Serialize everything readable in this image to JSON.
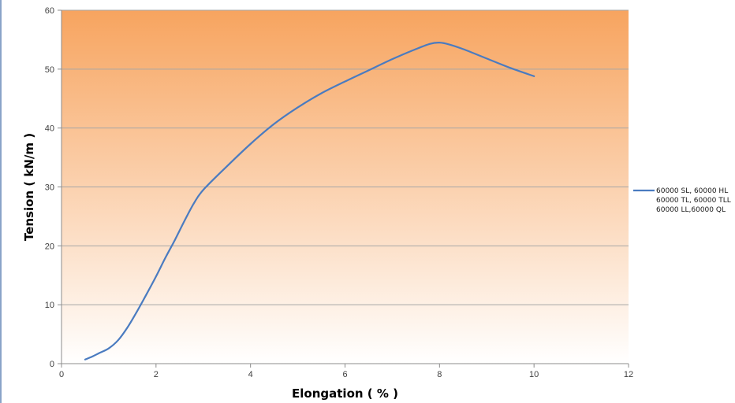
{
  "chart_data": {
    "type": "line",
    "title": "",
    "xlabel": "Elongation ( % )",
    "ylabel": "Tension ( kN/m )",
    "xlim": [
      0,
      12
    ],
    "ylim": [
      0,
      60
    ],
    "xticks": [
      0,
      2,
      4,
      6,
      8,
      10,
      12
    ],
    "yticks": [
      0,
      10,
      20,
      30,
      40,
      50,
      60
    ],
    "grid": "horizontal",
    "legend_position": "right",
    "background": "orange-to-white vertical gradient",
    "colors": {
      "line": "#4a7bc0",
      "gradient_top": "#f7a45f",
      "gradient_bottom": "#ffffff",
      "grid": "#a6a6a6"
    },
    "series": [
      {
        "name": "60000 SL, 60000 HL, 60000 TL, 60000 TLL, 60000 LL,60000 QL",
        "legend_lines": [
          "60000 SL, 60000 HL",
          "60000 TL, 60000 TLL",
          "60000 LL,60000 QL"
        ],
        "x": [
          0.5,
          0.65,
          0.8,
          1.0,
          1.2,
          1.4,
          1.6,
          1.8,
          2.0,
          2.2,
          2.4,
          2.6,
          2.8,
          3.0,
          3.5,
          4.0,
          4.5,
          5.0,
          5.5,
          6.0,
          6.5,
          7.0,
          7.5,
          7.8,
          8.0,
          8.2,
          8.5,
          9.0,
          9.5,
          10.0
        ],
        "y": [
          0.7,
          1.2,
          1.8,
          2.6,
          4.0,
          6.2,
          8.9,
          11.8,
          14.8,
          18.0,
          21.0,
          24.2,
          27.2,
          29.5,
          33.5,
          37.3,
          40.7,
          43.5,
          45.9,
          47.9,
          49.8,
          51.7,
          53.4,
          54.3,
          54.5,
          54.2,
          53.4,
          51.8,
          50.2,
          48.8
        ]
      }
    ]
  }
}
